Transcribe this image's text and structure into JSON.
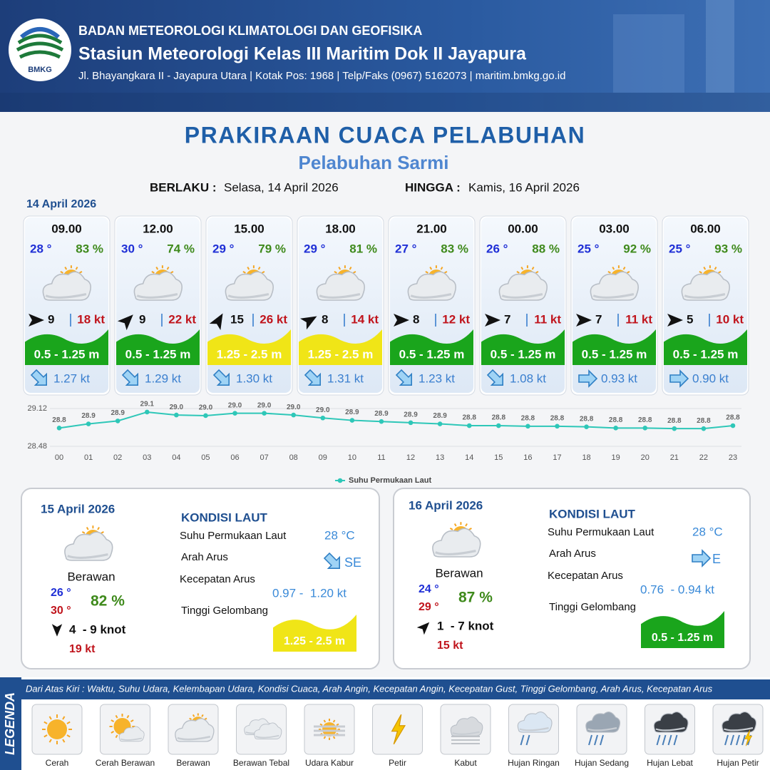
{
  "header": {
    "logo": "BMKG",
    "agency": "BADAN METEOROLOGI KLIMATOLOGI DAN GEOFISIKA",
    "station": "Stasiun Meteorologi Kelas III Maritim Dok II Jayapura",
    "address": "Jl. Bhayangkara II - Jayapura Utara | Kotak Pos: 1968 | Telp/Faks (0967) 5162073 | maritim.bmkg.go.id"
  },
  "title": "PRAKIRAAN CUACA PELABUHAN",
  "port": "Pelabuhan Sarmi",
  "valid_from_label": "BERLAKU :",
  "valid_from": "Selasa, 14 April 2026",
  "valid_to_label": "HINGGA :",
  "valid_to": "Kamis, 16 April 2026",
  "day1_date": "14 April 2026",
  "cards": [
    {
      "time": "09.00",
      "temp": "28 °",
      "humidity": "83 %",
      "wind": 9,
      "gust": "18 kt",
      "wave": "0.5 - 1.25 m",
      "current": "1.27 kt",
      "wind_deg": 90,
      "current_deg": 135,
      "wave_color": "#1aa51c"
    },
    {
      "time": "12.00",
      "temp": "30 °",
      "humidity": "74 %",
      "wind": 9,
      "gust": "22 kt",
      "wave": "0.5 - 1.25 m",
      "current": "1.29 kt",
      "wind_deg": 45,
      "current_deg": 135,
      "wave_color": "#1aa51c"
    },
    {
      "time": "15.00",
      "temp": "29 °",
      "humidity": "79 %",
      "wind": 15,
      "gust": "26 kt",
      "wave": "1.25 - 2.5 m",
      "current": "1.30 kt",
      "wind_deg": 30,
      "current_deg": 135,
      "wave_color": "#f0e517"
    },
    {
      "time": "18.00",
      "temp": "29 °",
      "humidity": "81 %",
      "wind": 8,
      "gust": "14 kt",
      "wave": "1.25 - 2.5 m",
      "current": "1.31 kt",
      "wind_deg": 60,
      "current_deg": 135,
      "wave_color": "#f0e517"
    },
    {
      "time": "21.00",
      "temp": "27 °",
      "humidity": "83 %",
      "wind": 8,
      "gust": "12 kt",
      "wave": "0.5 - 1.25 m",
      "current": "1.23 kt",
      "wind_deg": 90,
      "current_deg": 135,
      "wave_color": "#1aa51c"
    },
    {
      "time": "00.00",
      "temp": "26 °",
      "humidity": "88 %",
      "wind": 7,
      "gust": "11 kt",
      "wave": "0.5 - 1.25 m",
      "current": "1.08 kt",
      "wind_deg": 90,
      "current_deg": 135,
      "wave_color": "#1aa51c"
    },
    {
      "time": "03.00",
      "temp": "25 °",
      "humidity": "92 %",
      "wind": 7,
      "gust": "11 kt",
      "wave": "0.5 - 1.25 m",
      "current": "0.93 kt",
      "wind_deg": 90,
      "current_deg": 90,
      "wave_color": "#1aa51c"
    },
    {
      "time": "06.00",
      "temp": "25 °",
      "humidity": "93 %",
      "wind": 5,
      "gust": "10 kt",
      "wave": "0.5 - 1.25 m",
      "current": "0.90 kt",
      "wind_deg": 90,
      "current_deg": 90,
      "wave_color": "#1aa51c"
    }
  ],
  "chart_data": {
    "type": "line",
    "categories": [
      "00",
      "01",
      "02",
      "03",
      "04",
      "05",
      "06",
      "07",
      "08",
      "09",
      "10",
      "11",
      "12",
      "13",
      "14",
      "15",
      "16",
      "17",
      "18",
      "19",
      "20",
      "21",
      "22",
      "23"
    ],
    "series": [
      {
        "name": "Suhu Permukaan Laut",
        "color": "#2ec7b8",
        "values": [
          28.79,
          28.86,
          28.91,
          29.06,
          29.01,
          29.0,
          29.04,
          29.04,
          29.01,
          28.96,
          28.92,
          28.9,
          28.88,
          28.86,
          28.83,
          28.83,
          28.82,
          28.82,
          28.81,
          28.79,
          28.79,
          28.78,
          28.78,
          28.83
        ],
        "value_labels": [
          "28.8",
          "28.9",
          "28.9",
          "29.1",
          "29.0",
          "29.0",
          "29.0",
          "29.0",
          "29.0",
          "29.0",
          "28.9",
          "28.9",
          "28.9",
          "28.9",
          "28.8",
          "28.8",
          "28.8",
          "28.8",
          "28.8",
          "28.8",
          "28.8",
          "28.8",
          "28.8",
          "28.8"
        ]
      }
    ],
    "ylim": [
      28.48,
      29.12
    ],
    "yticks": [
      28.48,
      29.12
    ],
    "grid": true
  },
  "days": [
    {
      "date": "15 April 2026",
      "condition": "Berawan",
      "temp_min": "26 °",
      "temp_max": "30 °",
      "humidity": "82 %",
      "wind": "4  - 9 knot",
      "gust": "19 kt",
      "wind_deg": 180,
      "sea_heading": "KONDISI LAUT",
      "sst_label": "Suhu Permukaan Laut",
      "sst": "28 °C",
      "current_dir_label": "Arah Arus",
      "current_dir": "SE",
      "current_deg": 135,
      "current_speed_label": "Kecepatan Arus",
      "current_speed": "0.97 -  1.20 kt",
      "wave_label": "Tinggi Gelombang",
      "wave": "1.25 - 2.5 m",
      "wave_color": "#f0e517"
    },
    {
      "date": "16 April 2026",
      "condition": "Berawan",
      "temp_min": "24 °",
      "temp_max": "29 °",
      "humidity": "87 %",
      "wind": "1  - 7 knot",
      "gust": "15 kt",
      "wind_deg": 45,
      "sea_heading": "KONDISI LAUT",
      "sst_label": "Suhu Permukaan Laut",
      "sst": "28 °C",
      "current_dir_label": "Arah Arus",
      "current_dir": "E",
      "current_deg": 90,
      "current_speed_label": "Kecepatan Arus",
      "current_speed": "0.76  - 0.94 kt",
      "wave_label": "Tinggi Gelombang",
      "wave": "0.5 - 1.25 m",
      "wave_color": "#1aa51c"
    }
  ],
  "legend": {
    "title": "LEGENDA",
    "description": "Dari Atas Kiri : Waktu, Suhu Udara, Kelembapan Udara, Kondisi Cuaca, Arah Angin, Kecepatan Angin, Kecepatan Gust, Tinggi Gelombang, Arah Arus, Kecepatan Arus",
    "items": [
      "Cerah",
      "Cerah Berawan",
      "Berawan",
      "Berawan Tebal",
      "Udara Kabur",
      "Petir",
      "Kabut",
      "Hujan Ringan",
      "Hujan Sedang",
      "Hujan Lebat",
      "Hujan Petir"
    ]
  }
}
